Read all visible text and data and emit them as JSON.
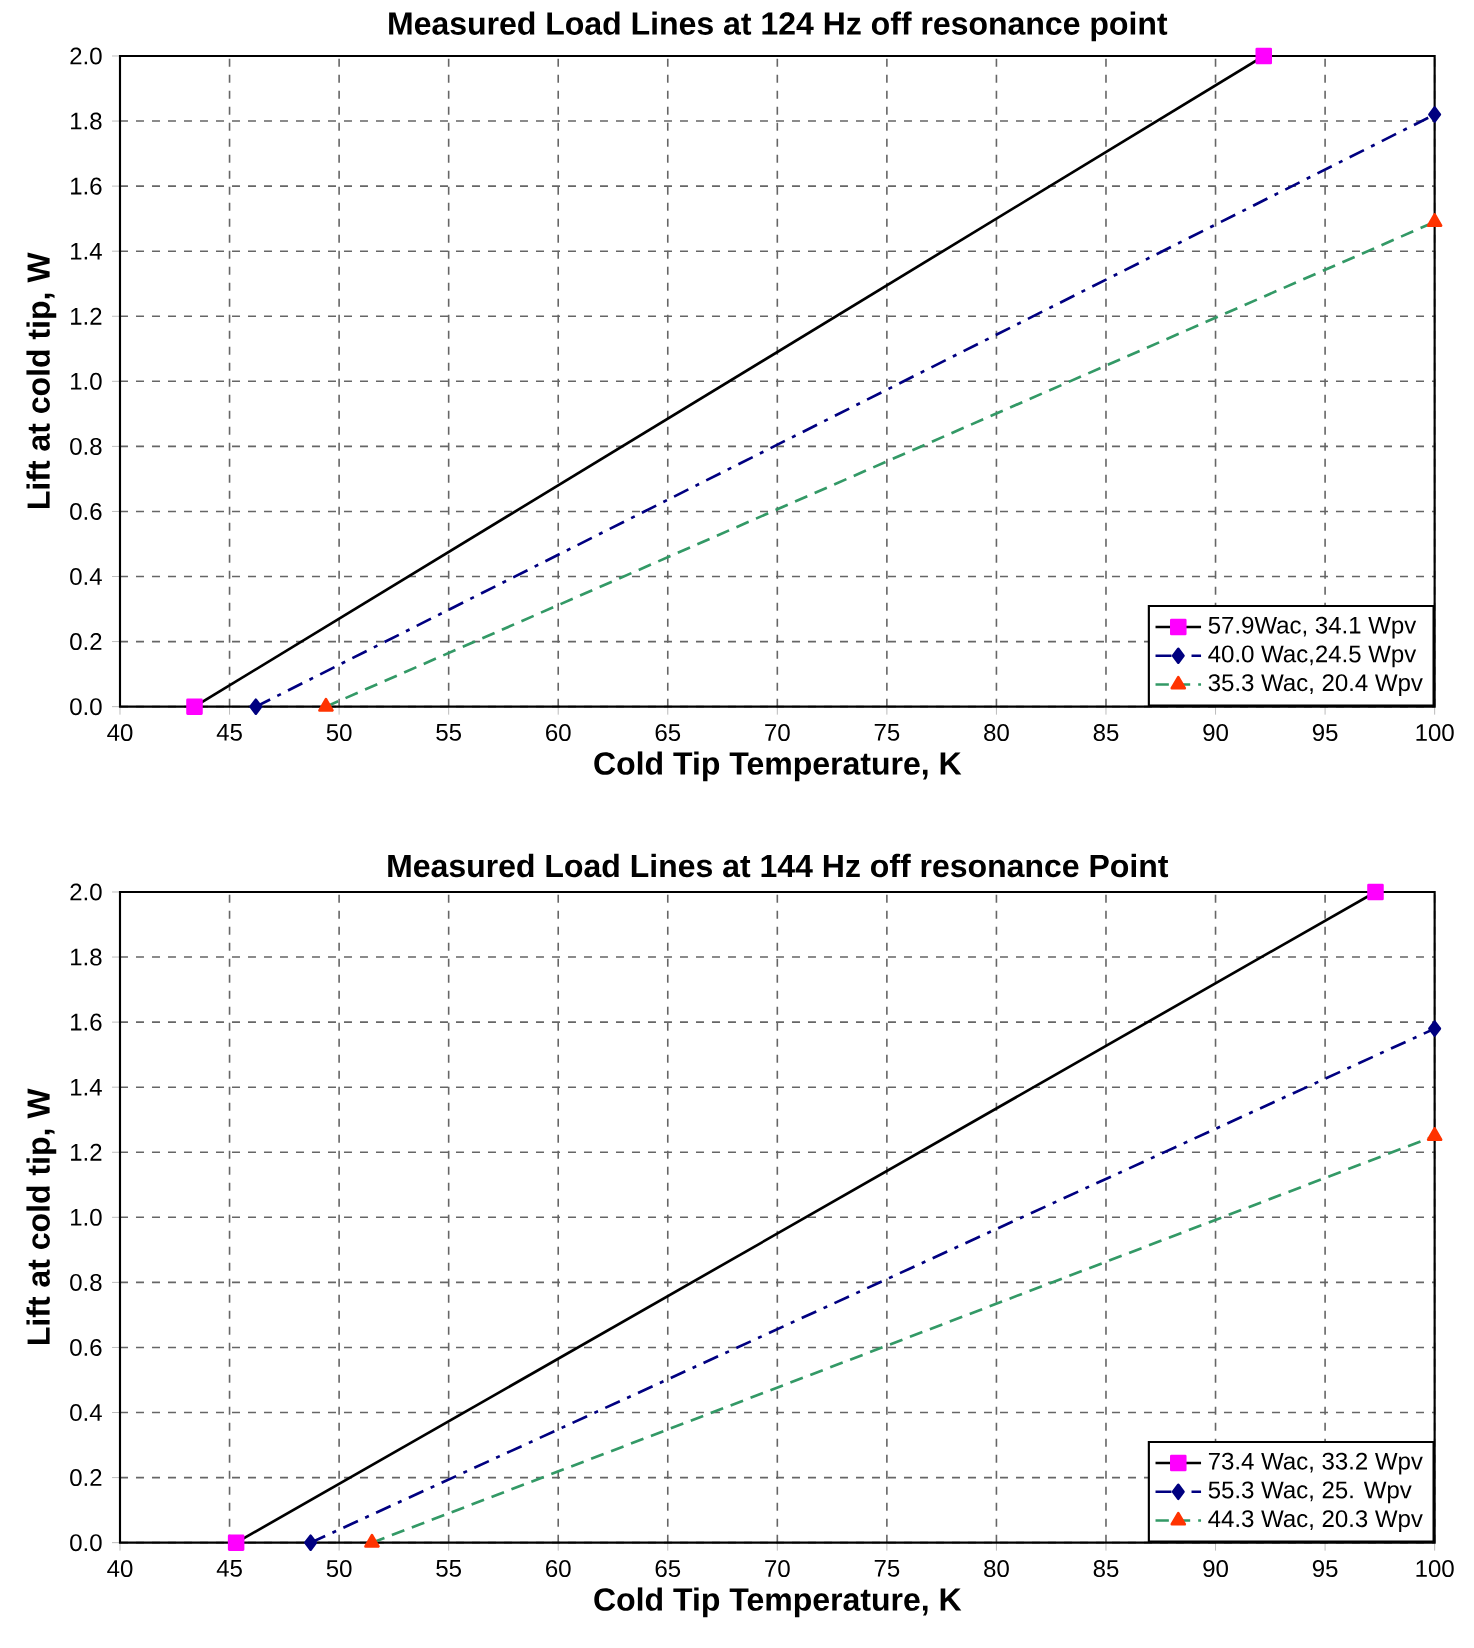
{
  "chart_data": [
    {
      "type": "line",
      "title": "Measured Load Lines at 124 Hz off resonance point",
      "xlabel": "Cold Tip Temperature, K",
      "ylabel": "Lift at cold tip, W",
      "xlim": [
        40,
        100
      ],
      "xticks": [
        40,
        45,
        50,
        55,
        60,
        65,
        70,
        75,
        80,
        85,
        90,
        95,
        100
      ],
      "ylim": [
        0,
        2.0
      ],
      "yticks": [
        {
          "value": 0,
          "label": "0.0"
        },
        {
          "value": 0.2,
          "label": "0.2"
        },
        {
          "value": 0.4,
          "label": "0.4"
        },
        {
          "value": 0.6,
          "label": "0.6"
        },
        {
          "value": 0.8,
          "label": "0.8"
        },
        {
          "value": 1.0,
          "label": "1.0"
        },
        {
          "value": 1.2,
          "label": "1.2"
        },
        {
          "value": 1.4,
          "label": "1.4"
        },
        {
          "value": 1.6,
          "label": "1.6"
        },
        {
          "value": 1.8,
          "label": "1.8"
        },
        {
          "value": 2.0,
          "label": "2.0"
        }
      ],
      "grid": true,
      "legend": "bottom right",
      "series": [
        {
          "name": "57.9Wac, 34.1 Wpv",
          "color": "#000000",
          "colors": [
            "#ff00ff",
            "#ff00ff"
          ],
          "marker": "square",
          "line_style": "solid",
          "x": [
            43.4,
            92.2
          ],
          "values": [
            0,
            2.0
          ]
        },
        {
          "name": "40.0 Wac,24.5 Wpv",
          "color": "#000080",
          "colors": [
            "#000080",
            "#000080"
          ],
          "marker": "diamond",
          "line_style": "dashdot",
          "x": [
            46.2,
            100
          ],
          "values": [
            0,
            1.82
          ]
        },
        {
          "name": "35.3 Wac, 20.4 Wpv",
          "color": "#339966",
          "colors": [
            "#ff3300",
            "#ff3300"
          ],
          "marker": "triangle",
          "line_style": "dashed",
          "x": [
            49.4,
            100
          ],
          "values": [
            0,
            1.49
          ]
        }
      ]
    },
    {
      "type": "line",
      "title": "Measured Load Lines at 144 Hz off resonance Point",
      "xlabel": "Cold Tip Temperature, K",
      "ylabel": "Lift at cold tip, W",
      "xlim": [
        40,
        100
      ],
      "xticks": [
        40,
        45,
        50,
        55,
        60,
        65,
        70,
        75,
        80,
        85,
        90,
        95,
        100
      ],
      "ylim": [
        0,
        2.0
      ],
      "yticks": [
        {
          "value": 0,
          "label": "0.0"
        },
        {
          "value": 0.2,
          "label": "0.2"
        },
        {
          "value": 0.4,
          "label": "0.4"
        },
        {
          "value": 0.6,
          "label": "0.6"
        },
        {
          "value": 0.8,
          "label": "0.8"
        },
        {
          "value": 1.0,
          "label": "1.0"
        },
        {
          "value": 1.2,
          "label": "1.2"
        },
        {
          "value": 1.4,
          "label": "1.4"
        },
        {
          "value": 1.6,
          "label": "1.6"
        },
        {
          "value": 1.8,
          "label": "1.8"
        },
        {
          "value": 2.0,
          "label": "2.0"
        }
      ],
      "grid": true,
      "legend": "bottom right",
      "series": [
        {
          "name": "73.4 Wac, 33.2 Wpv",
          "color": "#000000",
          "colors": [
            "#ff00ff",
            "#ff00ff"
          ],
          "marker": "square",
          "line_style": "solid",
          "x": [
            45.3,
            97.3
          ],
          "values": [
            0,
            2.0
          ]
        },
        {
          "name": "55.3 Wac, 25. Wpv",
          "color": "#000080",
          "colors": [
            "#000080",
            "#000080"
          ],
          "marker": "diamond",
          "line_style": "dashdot",
          "x": [
            48.7,
            100
          ],
          "values": [
            0,
            1.58
          ]
        },
        {
          "name": "44.3 Wac, 20.3 Wpv",
          "color": "#339966",
          "colors": [
            "#ff3300",
            "#ff3300"
          ],
          "marker": "triangle",
          "line_style": "dashed",
          "x": [
            51.5,
            100
          ],
          "values": [
            0,
            1.25
          ]
        }
      ]
    }
  ]
}
